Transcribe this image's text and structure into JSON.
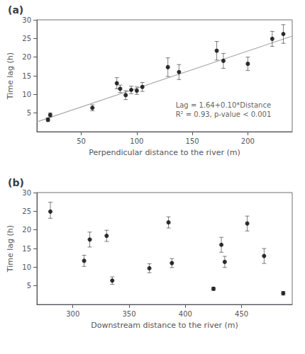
{
  "chart_data": [
    {
      "type": "scatter",
      "title": "(a)",
      "xlabel": "Perpendicular distance to the river (m)",
      "ylabel": "Time lag (h)",
      "annotation": {
        "text": "Lag = 1.64+0.10*Distance\nR² = 0.93, p-value < 0.001",
        "x": 135,
        "y": 3.5
      },
      "xlim": [
        10,
        240
      ],
      "ylim": [
        0,
        30
      ],
      "xticks": [
        50,
        100,
        150,
        200
      ],
      "yticks": [
        5,
        10,
        15,
        20,
        25,
        30
      ],
      "grid": false,
      "series": [
        {
          "type": "scatter",
          "marker": "circle",
          "color": "black",
          "x": [
            20,
            22,
            60,
            82,
            85,
            90,
            95,
            100,
            105,
            128,
            138,
            172,
            178,
            200,
            222,
            232
          ],
          "values": [
            3.2,
            4.5,
            6.4,
            13.0,
            11.5,
            9.8,
            11.2,
            11.0,
            12.0,
            17.3,
            16.0,
            21.7,
            19.0,
            18.2,
            24.9,
            26.2
          ],
          "yerr_lo": [
            0.5,
            0.5,
            0.8,
            1.5,
            1.0,
            1.2,
            1.0,
            1.0,
            1.2,
            2.5,
            2.0,
            2.5,
            2.0,
            1.8,
            2.0,
            2.5
          ],
          "yerr_hi": [
            0.5,
            0.5,
            0.8,
            1.5,
            1.0,
            1.2,
            1.0,
            1.0,
            1.2,
            2.5,
            2.0,
            2.5,
            2.0,
            1.8,
            2.0,
            2.5
          ]
        },
        {
          "type": "line",
          "line_style": "solid",
          "color": "#aaaaaa",
          "x": [
            10,
            240
          ],
          "values": [
            2.64,
            25.64
          ]
        }
      ]
    },
    {
      "type": "scatter",
      "title": "(b)",
      "xlabel": "Downstream distance to the river (m)",
      "ylabel": "Time lag (h)",
      "xlim": [
        268,
        495
      ],
      "ylim": [
        0,
        30
      ],
      "xticks": [
        300,
        350,
        400,
        450
      ],
      "yticks": [
        5,
        10,
        15,
        20,
        25,
        30
      ],
      "grid": false,
      "series": [
        {
          "type": "scatter",
          "marker": "circle",
          "color": "black",
          "x": [
            280,
            310,
            315,
            330,
            335,
            368,
            385,
            388,
            425,
            432,
            435,
            455,
            470,
            487
          ],
          "values": [
            24.9,
            11.7,
            17.4,
            18.4,
            6.4,
            9.7,
            22.0,
            11.1,
            4.2,
            16.0,
            11.4,
            21.7,
            13.0,
            3.0
          ],
          "yerr_lo": [
            1.8,
            1.5,
            2.0,
            1.5,
            1.0,
            1.2,
            1.5,
            1.2,
            0.4,
            2.0,
            1.5,
            2.0,
            2.0,
            0.5
          ],
          "yerr_hi": [
            2.5,
            1.5,
            2.0,
            1.5,
            1.0,
            1.2,
            1.5,
            1.2,
            0.4,
            2.0,
            1.5,
            2.0,
            2.0,
            0.5
          ]
        }
      ]
    }
  ]
}
